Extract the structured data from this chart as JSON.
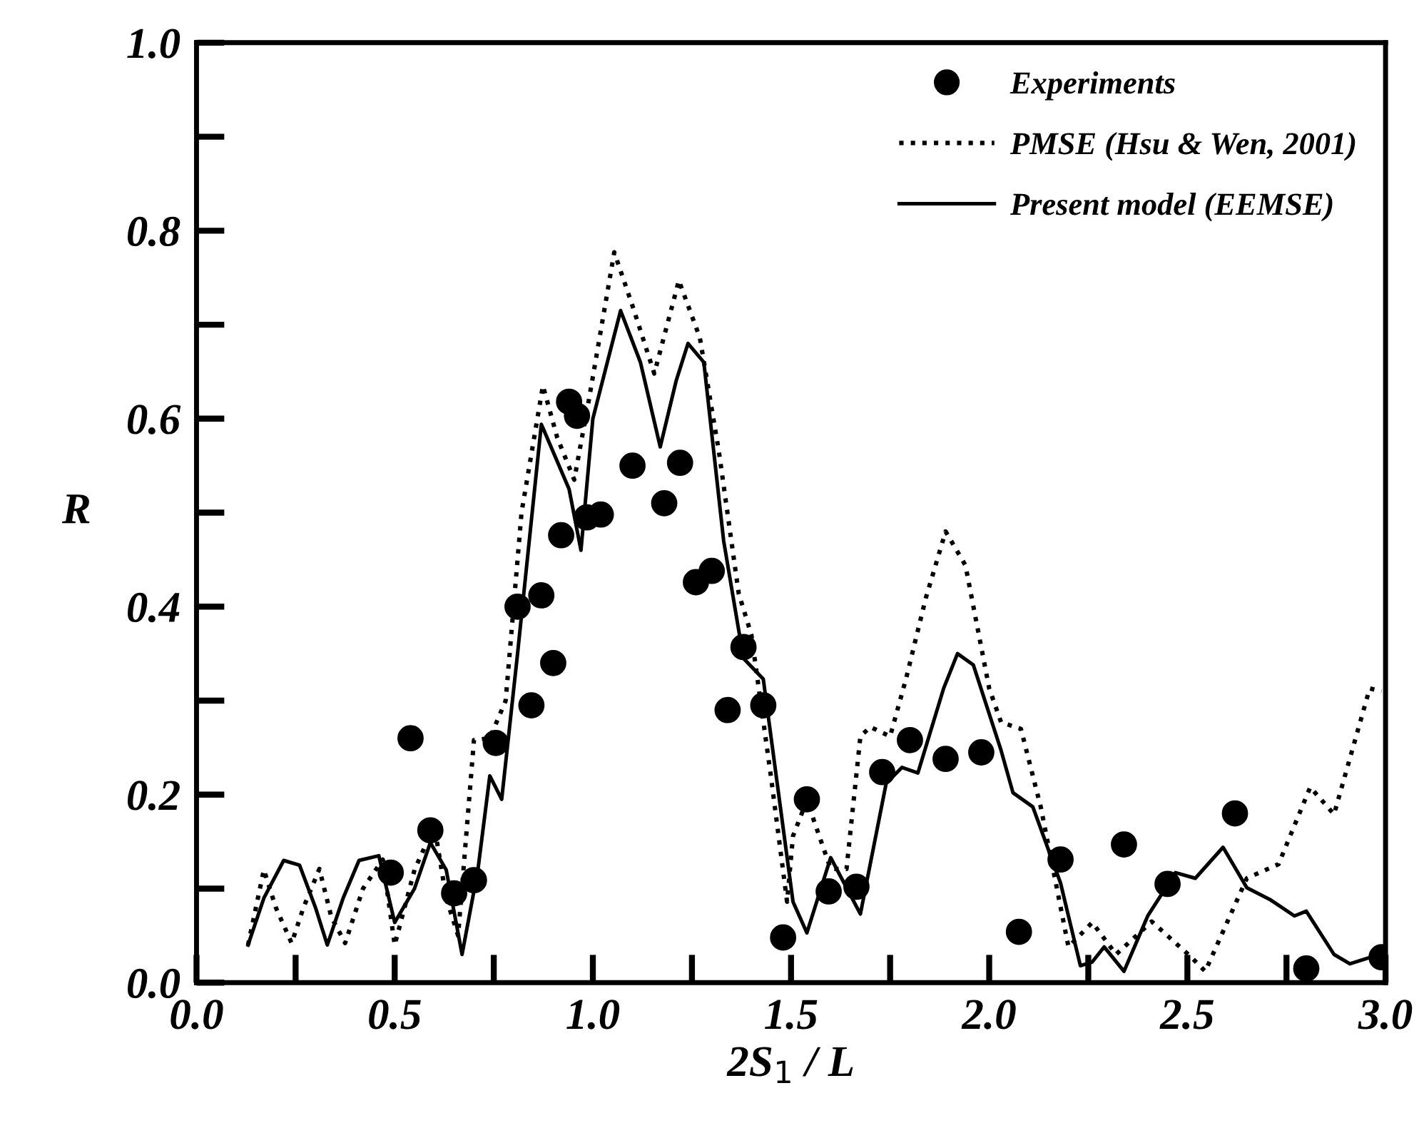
{
  "chart_data": {
    "type": "line",
    "xlabel": "2S$_{1}$ / L",
    "ylabel": "R",
    "xlim": [
      0,
      3
    ],
    "ylim": [
      0,
      1
    ],
    "xticks": [
      {
        "value": 0,
        "label": "0.0"
      },
      0.5,
      {
        "value": 1,
        "label": "1.0"
      },
      1.5,
      {
        "value": 2,
        "label": "2.0"
      },
      2.5,
      {
        "value": 3,
        "label": "3.0"
      }
    ],
    "yticks": [
      {
        "value": 0,
        "label": "0.0"
      },
      0.2,
      0.4,
      0.6,
      0.8,
      {
        "value": 1,
        "label": "1.0"
      }
    ],
    "grid": false,
    "legend": "top right",
    "series": [
      {
        "name": "Experiments",
        "type": "scatter",
        "marker": "circle",
        "color": "#000000",
        "x": [
          0.49,
          0.54,
          0.59,
          0.65,
          0.7,
          0.755,
          0.845,
          0.81,
          0.87,
          0.9,
          0.92,
          0.94,
          0.96,
          0.985,
          1.02,
          1.1,
          1.18,
          1.22,
          1.26,
          1.3,
          1.38,
          1.34,
          1.43,
          1.48,
          1.54,
          1.595,
          1.665,
          1.73,
          1.8,
          1.89,
          1.98,
          2.075,
          2.18,
          2.34,
          2.45,
          2.62,
          2.8,
          2.99
        ],
        "values": [
          0.117,
          0.26,
          0.162,
          0.095,
          0.109,
          0.255,
          0.295,
          0.4,
          0.412,
          0.34,
          0.476,
          0.618,
          0.603,
          0.495,
          0.498,
          0.55,
          0.51,
          0.553,
          0.426,
          0.438,
          0.357,
          0.29,
          0.295,
          0.048,
          0.195,
          0.097,
          0.102,
          0.224,
          0.258,
          0.238,
          0.245,
          0.054,
          0.131,
          0.147,
          0.105,
          0.18,
          0.015,
          0.027
        ]
      },
      {
        "name": "PMSE (Hsu & Wen, 2001)",
        "line_style": "dotted",
        "marker": "none",
        "color": "#000000",
        "x": [
          0.13,
          0.17,
          0.2,
          0.24,
          0.27,
          0.31,
          0.34,
          0.375,
          0.42,
          0.47,
          0.5,
          0.55,
          0.6,
          0.63,
          0.66,
          0.7,
          0.74,
          0.78,
          0.82,
          0.874,
          0.91,
          0.953,
          0.99,
          1.054,
          1.1,
          1.155,
          1.217,
          1.27,
          1.318,
          1.368,
          1.4,
          1.45,
          1.49,
          1.505,
          1.54,
          1.6,
          1.64,
          1.675,
          1.7,
          1.75,
          1.79,
          1.84,
          1.89,
          1.94,
          2.0,
          2.03,
          2.08,
          2.13,
          2.2,
          2.26,
          2.32,
          2.41,
          2.51,
          2.545,
          2.65,
          2.73,
          2.81,
          2.87,
          2.96,
          2.99
        ],
        "values": [
          0.04,
          0.12,
          0.08,
          0.042,
          0.08,
          0.121,
          0.07,
          0.042,
          0.1,
          0.131,
          0.04,
          0.12,
          0.167,
          0.09,
          0.05,
          0.258,
          0.26,
          0.3,
          0.5,
          0.635,
          0.58,
          0.535,
          0.62,
          0.777,
          0.72,
          0.648,
          0.747,
          0.686,
          0.565,
          0.414,
          0.37,
          0.217,
          0.086,
          0.156,
          0.194,
          0.121,
          0.121,
          0.262,
          0.272,
          0.262,
          0.323,
          0.409,
          0.48,
          0.444,
          0.313,
          0.277,
          0.27,
          0.187,
          0.038,
          0.064,
          0.03,
          0.065,
          0.027,
          0.012,
          0.111,
          0.126,
          0.208,
          0.179,
          0.313,
          0.31
        ]
      },
      {
        "name": "Present model (EEMSE)",
        "line_style": "solid",
        "marker": "none",
        "color": "#000000",
        "x": [
          0.13,
          0.17,
          0.22,
          0.26,
          0.3,
          0.33,
          0.37,
          0.41,
          0.46,
          0.5,
          0.55,
          0.59,
          0.63,
          0.67,
          0.71,
          0.74,
          0.77,
          0.81,
          0.87,
          0.94,
          0.97,
          1.0,
          1.07,
          1.12,
          1.17,
          1.21,
          1.24,
          1.28,
          1.33,
          1.38,
          1.43,
          1.505,
          1.54,
          1.6,
          1.675,
          1.74,
          1.78,
          1.82,
          1.885,
          1.92,
          1.96,
          2.03,
          2.06,
          2.11,
          2.18,
          2.23,
          2.26,
          2.29,
          2.34,
          2.4,
          2.47,
          2.52,
          2.59,
          2.65,
          2.71,
          2.77,
          2.8,
          2.87,
          2.91,
          2.985
        ],
        "values": [
          0.04,
          0.09,
          0.13,
          0.125,
          0.08,
          0.04,
          0.09,
          0.13,
          0.135,
          0.064,
          0.1,
          0.149,
          0.12,
          0.03,
          0.12,
          0.22,
          0.195,
          0.35,
          0.594,
          0.525,
          0.46,
          0.6,
          0.715,
          0.66,
          0.57,
          0.64,
          0.68,
          0.66,
          0.47,
          0.345,
          0.323,
          0.086,
          0.053,
          0.133,
          0.073,
          0.212,
          0.229,
          0.223,
          0.313,
          0.35,
          0.338,
          0.247,
          0.202,
          0.187,
          0.106,
          0.018,
          0.022,
          0.038,
          0.012,
          0.071,
          0.117,
          0.111,
          0.144,
          0.101,
          0.088,
          0.071,
          0.076,
          0.03,
          0.02,
          0.03
        ]
      }
    ]
  }
}
